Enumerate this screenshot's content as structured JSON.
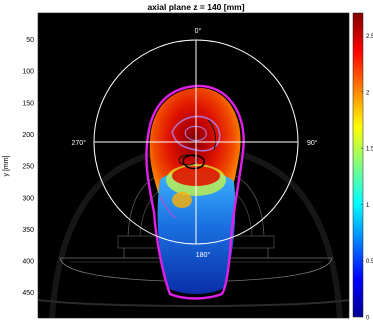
{
  "chart_data": {
    "type": "heatmap",
    "title": "axial plane z = 140 [mm]",
    "xlabel": "",
    "ylabel": "y [mm]",
    "y_ticks": [
      50,
      100,
      150,
      200,
      250,
      300,
      350,
      400,
      450
    ],
    "y_range": [
      8,
      490
    ],
    "colorbar": {
      "ticks": [
        0,
        0.5,
        1,
        1.5,
        2,
        2.5
      ],
      "range": [
        0,
        2.7
      ],
      "colormap": "jet"
    },
    "angle_labels": [
      {
        "label": "0°",
        "position": "top"
      },
      {
        "label": "90°",
        "position": "right"
      },
      {
        "label": "180°",
        "position": "bottom"
      },
      {
        "label": "270°",
        "position": "left"
      }
    ],
    "grid": false
  },
  "colors": {
    "background": "#000000",
    "overlay": "#ffffff",
    "isodose_outer": "#d21fd2",
    "isodose_inner": "#7b2d6b"
  }
}
